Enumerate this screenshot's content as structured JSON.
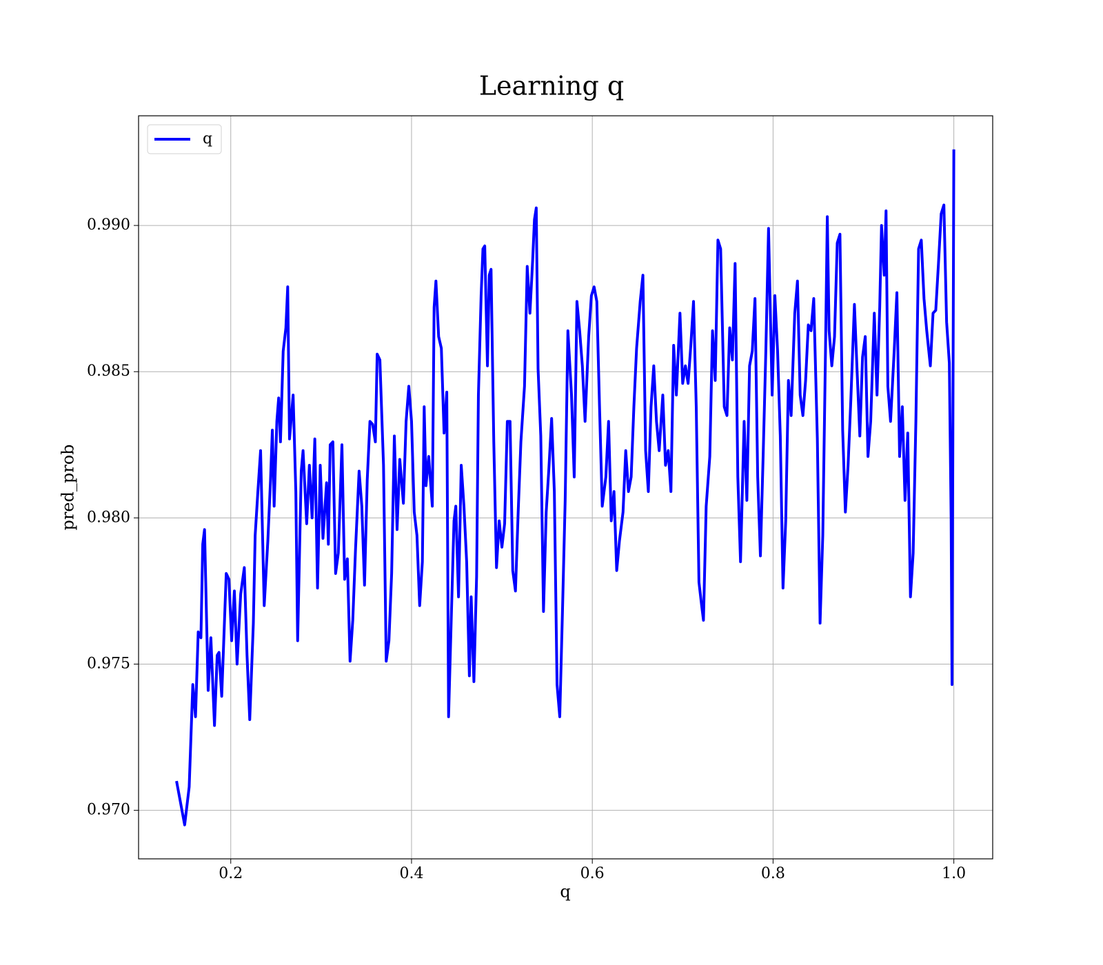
{
  "chart_data": {
    "type": "line",
    "title": "Learning q",
    "xlabel": "q",
    "ylabel": "pred_prob",
    "xlim": [
      0.098,
      1.043
    ],
    "ylim": [
      0.96834,
      0.99375
    ],
    "xticks": [
      0.2,
      0.4,
      0.6,
      0.8,
      {
        "value": 1.0,
        "label": "1.0"
      }
    ],
    "yticks": [
      {
        "value": 0.97,
        "label": "0.970"
      },
      {
        "value": 0.975,
        "label": "0.975"
      },
      {
        "value": 0.98,
        "label": "0.980"
      },
      {
        "value": 0.985,
        "label": "0.985"
      },
      {
        "value": 0.99,
        "label": "0.990"
      }
    ],
    "grid": true,
    "legend": "upper left",
    "series": [
      {
        "name": "q",
        "color": "#0000ff",
        "x": [
          0.14,
          0.149,
          0.154,
          0.158,
          0.161,
          0.164,
          0.167,
          0.169,
          0.171,
          0.175,
          0.178,
          0.182,
          0.185,
          0.187,
          0.19,
          0.195,
          0.198,
          0.201,
          0.204,
          0.207,
          0.211,
          0.215,
          0.218,
          0.221,
          0.225,
          0.227,
          0.23,
          0.233,
          0.237,
          0.241,
          0.244,
          0.246,
          0.248,
          0.251,
          0.253,
          0.255,
          0.258,
          0.261,
          0.263,
          0.265,
          0.269,
          0.272,
          0.274,
          0.278,
          0.28,
          0.284,
          0.287,
          0.29,
          0.293,
          0.296,
          0.299,
          0.302,
          0.306,
          0.308,
          0.31,
          0.313,
          0.316,
          0.319,
          0.323,
          0.326,
          0.329,
          0.332,
          0.335,
          0.338,
          0.342,
          0.345,
          0.348,
          0.351,
          0.354,
          0.357,
          0.36,
          0.362,
          0.365,
          0.369,
          0.372,
          0.375,
          0.378,
          0.381,
          0.384,
          0.387,
          0.391,
          0.394,
          0.397,
          0.4,
          0.403,
          0.406,
          0.409,
          0.412,
          0.414,
          0.416,
          0.419,
          0.423,
          0.425,
          0.427,
          0.43,
          0.433,
          0.436,
          0.439,
          0.441,
          0.444,
          0.447,
          0.449,
          0.452,
          0.455,
          0.458,
          0.461,
          0.464,
          0.466,
          0.469,
          0.472,
          0.474,
          0.477,
          0.479,
          0.481,
          0.484,
          0.486,
          0.488,
          0.491,
          0.494,
          0.497,
          0.5,
          0.503,
          0.506,
          0.509,
          0.512,
          0.515,
          0.518,
          0.521,
          0.525,
          0.528,
          0.531,
          0.534,
          0.536,
          0.538,
          0.54,
          0.543,
          0.546,
          0.549,
          0.552,
          0.555,
          0.558,
          0.561,
          0.564,
          0.567,
          0.57,
          0.573,
          0.577,
          0.58,
          0.583,
          0.586,
          0.589,
          0.592,
          0.596,
          0.599,
          0.602,
          0.605,
          0.608,
          0.611,
          0.615,
          0.618,
          0.621,
          0.624,
          0.627,
          0.63,
          0.634,
          0.637,
          0.64,
          0.643,
          0.646,
          0.649,
          0.653,
          0.656,
          0.659,
          0.662,
          0.665,
          0.668,
          0.671,
          0.674,
          0.678,
          0.681,
          0.684,
          0.687,
          0.69,
          0.693,
          0.697,
          0.7,
          0.703,
          0.706,
          0.709,
          0.712,
          0.715,
          0.718,
          0.721,
          0.723,
          0.726,
          0.73,
          0.733,
          0.736,
          0.739,
          0.742,
          0.746,
          0.749,
          0.752,
          0.755,
          0.758,
          0.761,
          0.764,
          0.768,
          0.771,
          0.774,
          0.777,
          0.78,
          0.783,
          0.786,
          0.789,
          0.792,
          0.795,
          0.799,
          0.802,
          0.805,
          0.808,
          0.811,
          0.814,
          0.817,
          0.82,
          0.824,
          0.827,
          0.83,
          0.833,
          0.836,
          0.839,
          0.842,
          0.845,
          0.849,
          0.852,
          0.855,
          0.858,
          0.86,
          0.862,
          0.865,
          0.868,
          0.871,
          0.874,
          0.877,
          0.88,
          0.883,
          0.886,
          0.89,
          0.893,
          0.896,
          0.899,
          0.902,
          0.905,
          0.908,
          0.912,
          0.915,
          0.918,
          0.92,
          0.923,
          0.925,
          0.927,
          0.93,
          0.934,
          0.937,
          0.94,
          0.943,
          0.946,
          0.949,
          0.952,
          0.955,
          0.958,
          0.961,
          0.964,
          0.967,
          0.97,
          0.974,
          0.977,
          0.98,
          0.983,
          0.986,
          0.989,
          0.992,
          0.995,
          0.997,
          0.998,
          1.0
        ],
        "values": [
          0.971,
          0.9695,
          0.9708,
          0.9743,
          0.9732,
          0.9761,
          0.9759,
          0.9791,
          0.9796,
          0.9741,
          0.9759,
          0.9729,
          0.9753,
          0.9754,
          0.9739,
          0.9781,
          0.9779,
          0.9758,
          0.9775,
          0.975,
          0.9774,
          0.9783,
          0.9753,
          0.9731,
          0.9764,
          0.9794,
          0.9809,
          0.9823,
          0.977,
          0.9792,
          0.9813,
          0.983,
          0.9804,
          0.9833,
          0.9841,
          0.9826,
          0.9857,
          0.9865,
          0.9879,
          0.9827,
          0.9842,
          0.9809,
          0.9758,
          0.9816,
          0.9823,
          0.9798,
          0.9818,
          0.98,
          0.9827,
          0.9776,
          0.9818,
          0.9793,
          0.9812,
          0.9791,
          0.9825,
          0.9826,
          0.9781,
          0.9788,
          0.9825,
          0.9779,
          0.9786,
          0.9751,
          0.9765,
          0.9789,
          0.9816,
          0.9804,
          0.9777,
          0.9813,
          0.9833,
          0.9832,
          0.9826,
          0.9856,
          0.9854,
          0.9818,
          0.9751,
          0.9758,
          0.9781,
          0.9828,
          0.9796,
          0.982,
          0.9805,
          0.9833,
          0.9845,
          0.9833,
          0.9802,
          0.9794,
          0.977,
          0.9785,
          0.9838,
          0.9811,
          0.9821,
          0.9804,
          0.9872,
          0.9881,
          0.9862,
          0.9858,
          0.9829,
          0.9843,
          0.9732,
          0.9766,
          0.9799,
          0.9804,
          0.9773,
          0.9818,
          0.9804,
          0.9785,
          0.9746,
          0.9773,
          0.9744,
          0.978,
          0.9842,
          0.9876,
          0.9892,
          0.9893,
          0.9852,
          0.9883,
          0.9885,
          0.9826,
          0.9783,
          0.9799,
          0.979,
          0.9798,
          0.9833,
          0.9833,
          0.9782,
          0.9775,
          0.9802,
          0.9826,
          0.9845,
          0.9886,
          0.987,
          0.9888,
          0.9902,
          0.9906,
          0.9851,
          0.9828,
          0.9768,
          0.9802,
          0.9817,
          0.9834,
          0.9809,
          0.9743,
          0.9732,
          0.9768,
          0.9806,
          0.9864,
          0.9842,
          0.9814,
          0.9874,
          0.9864,
          0.9852,
          0.9833,
          0.9862,
          0.9876,
          0.9879,
          0.9874,
          0.9838,
          0.9804,
          0.9814,
          0.9833,
          0.9799,
          0.9809,
          0.9782,
          0.9792,
          0.9802,
          0.9823,
          0.9809,
          0.9814,
          0.9838,
          0.9858,
          0.9874,
          0.9883,
          0.9823,
          0.9809,
          0.9838,
          0.9852,
          0.9833,
          0.9823,
          0.9842,
          0.9818,
          0.9823,
          0.9809,
          0.9859,
          0.9842,
          0.987,
          0.9846,
          0.9852,
          0.9846,
          0.9859,
          0.9874,
          0.9838,
          0.9778,
          0.977,
          0.9765,
          0.9804,
          0.9821,
          0.9864,
          0.9847,
          0.9895,
          0.9892,
          0.9838,
          0.9835,
          0.9865,
          0.9854,
          0.9887,
          0.9814,
          0.9785,
          0.9833,
          0.9806,
          0.9852,
          0.9857,
          0.9875,
          0.9814,
          0.9787,
          0.9821,
          0.9857,
          0.9899,
          0.9842,
          0.9876,
          0.9857,
          0.9828,
          0.9776,
          0.9799,
          0.9847,
          0.9835,
          0.987,
          0.9881,
          0.9842,
          0.9835,
          0.9847,
          0.9866,
          0.9864,
          0.9875,
          0.9827,
          0.9764,
          0.9794,
          0.9857,
          0.9903,
          0.9864,
          0.9852,
          0.9862,
          0.9894,
          0.9897,
          0.983,
          0.9802,
          0.9818,
          0.984,
          0.9873,
          0.985,
          0.9828,
          0.9855,
          0.9862,
          0.9821,
          0.9833,
          0.987,
          0.9842,
          0.9872,
          0.99,
          0.9883,
          0.9905,
          0.9845,
          0.9833,
          0.9857,
          0.9877,
          0.9821,
          0.9838,
          0.9806,
          0.9829,
          0.9773,
          0.9788,
          0.9833,
          0.9892,
          0.9895,
          0.9875,
          0.9864,
          0.9852,
          0.987,
          0.9871,
          0.9887,
          0.9904,
          0.9907,
          0.9867,
          0.9853,
          0.98,
          0.9743,
          0.9926
        ]
      }
    ]
  }
}
